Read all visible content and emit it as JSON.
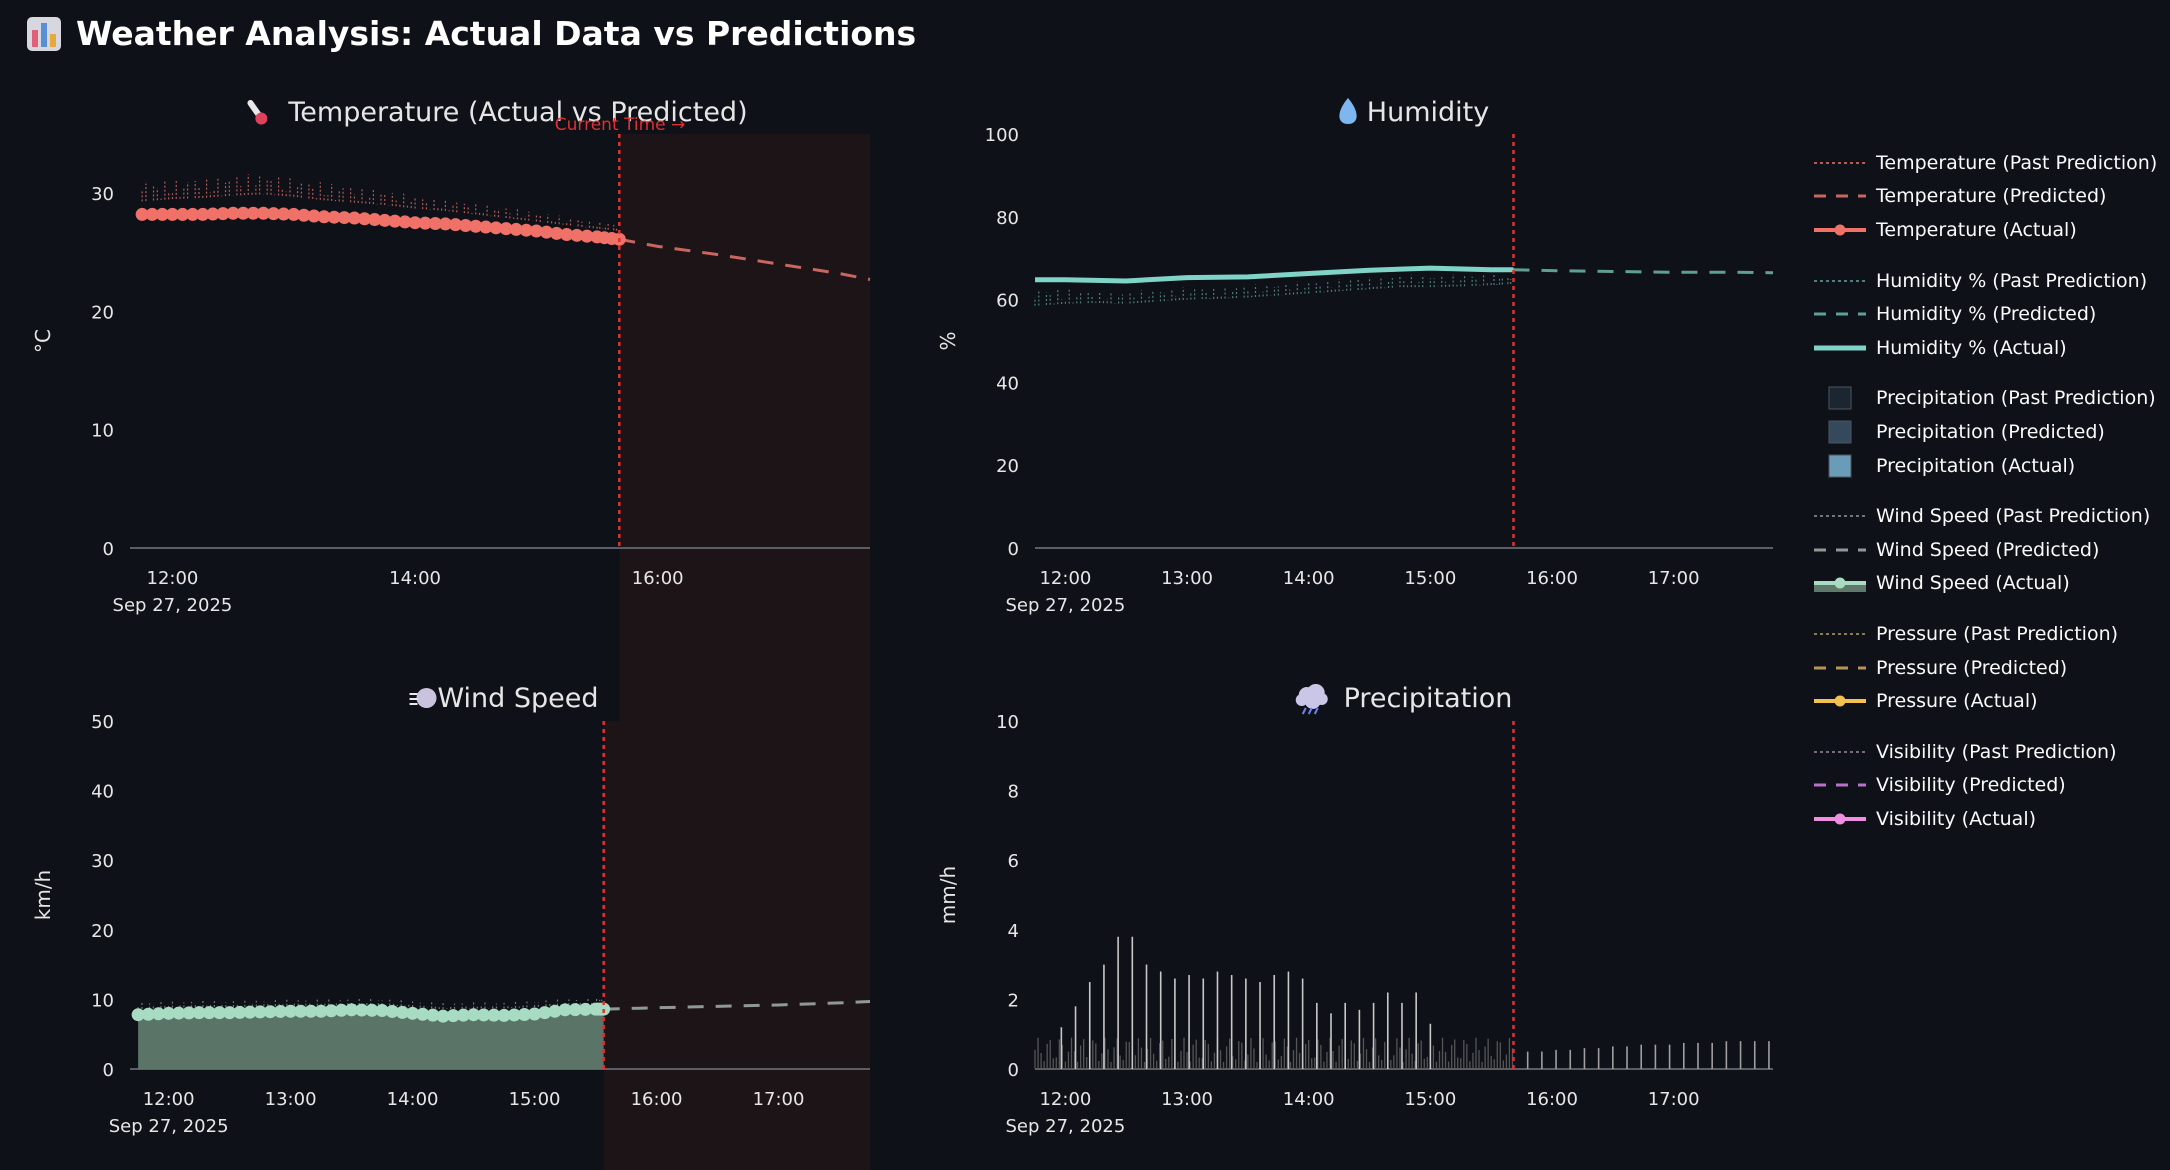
{
  "page": {
    "title": "Weather Analysis: Actual Data vs Predictions",
    "title_icon": "bar-chart-icon",
    "background": "#0e1117"
  },
  "colors": {
    "temperature": "#f07167",
    "temperature_pred": "#c9665f",
    "humidity": "#7fd3c7",
    "humidity_pred": "#5f9f94",
    "precip_past": "#1c2630",
    "precip_pred": "#34495c",
    "precip_actual": "#6a9cb8",
    "wind": "#a8dcc2",
    "wind_fill": "#5f7a6b",
    "wind_pred": "#8f9a94",
    "pressure": "#f2c14e",
    "pressure_pred": "#b8945a",
    "visibility": "#f08fe0",
    "visibility_pred": "#b873c9",
    "current_time_line": "#e03030",
    "future_shade": "#1d1417",
    "axis": "#5a5f66"
  },
  "current_time_label": "Current Time →",
  "legend": [
    [
      {
        "label": "Temperature (Past Prediction)",
        "style": "dotted",
        "color": "#b55a55"
      },
      {
        "label": "Temperature (Predicted)",
        "style": "dashed",
        "color": "#c9665f"
      },
      {
        "label": "Temperature (Actual)",
        "style": "solid-marker",
        "color": "#f07167"
      }
    ],
    [
      {
        "label": "Humidity % (Past Prediction)",
        "style": "dotted",
        "color": "#4f7f78"
      },
      {
        "label": "Humidity % (Predicted)",
        "style": "dashed",
        "color": "#5f9f94"
      },
      {
        "label": "Humidity % (Actual)",
        "style": "solid",
        "color": "#7fd3c7"
      }
    ],
    [
      {
        "label": "Precipitation (Past Prediction)",
        "style": "square",
        "color": "#1c2630"
      },
      {
        "label": "Precipitation (Predicted)",
        "style": "square",
        "color": "#34495c"
      },
      {
        "label": "Precipitation (Actual)",
        "style": "square",
        "color": "#6a9cb8"
      }
    ],
    [
      {
        "label": "Wind Speed (Past Prediction)",
        "style": "dotted",
        "color": "#6f7a74"
      },
      {
        "label": "Wind Speed (Predicted)",
        "style": "dashed",
        "color": "#8f9a94"
      },
      {
        "label": "Wind Speed (Actual)",
        "style": "fill-marker",
        "color": "#a8dcc2"
      }
    ],
    [
      {
        "label": "Pressure (Past Prediction)",
        "style": "dotted",
        "color": "#8a7a55"
      },
      {
        "label": "Pressure (Predicted)",
        "style": "dashed",
        "color": "#b8945a"
      },
      {
        "label": "Pressure (Actual)",
        "style": "solid-marker",
        "color": "#f2c14e"
      }
    ],
    [
      {
        "label": "Visibility (Past Prediction)",
        "style": "dotted",
        "color": "#7a6a80"
      },
      {
        "label": "Visibility (Predicted)",
        "style": "dashed",
        "color": "#b873c9"
      },
      {
        "label": "Visibility (Actual)",
        "style": "solid-marker",
        "color": "#f08fe0"
      }
    ]
  ],
  "chart_data": [
    {
      "id": "temperature",
      "type": "line",
      "title": "Temperature (Actual vs Predicted)",
      "title_icon": "thermometer-icon",
      "xlabel": "",
      "ylabel": "°C",
      "xlim": [
        "11:39",
        "17:45"
      ],
      "ylim": [
        0,
        35
      ],
      "yticks": [
        0,
        10,
        20,
        30
      ],
      "xticks": [
        "12:00",
        "14:00",
        "16:00"
      ],
      "date_label": "Sep 27, 2025",
      "current_time": "15:41",
      "future_shaded": true,
      "series": [
        {
          "name": "Temperature (Actual)",
          "role": "actual",
          "style": "solid-marker",
          "color": "#f07167",
          "x": [
            "11:45",
            "12:00",
            "12:15",
            "12:30",
            "12:45",
            "13:00",
            "13:15",
            "13:30",
            "13:45",
            "14:00",
            "14:15",
            "14:30",
            "14:45",
            "15:00",
            "15:15",
            "15:30",
            "15:41"
          ],
          "y": [
            28.2,
            28.2,
            28.2,
            28.3,
            28.3,
            28.2,
            28.0,
            27.9,
            27.7,
            27.5,
            27.4,
            27.2,
            27.0,
            26.8,
            26.5,
            26.3,
            26.1
          ]
        },
        {
          "name": "Temperature (Predicted)",
          "role": "predicted",
          "style": "dashed",
          "color": "#c9665f",
          "x": [
            "15:41",
            "16:00",
            "16:30",
            "17:00",
            "17:30",
            "17:45"
          ],
          "y": [
            26.1,
            25.5,
            24.8,
            24.0,
            23.2,
            22.7
          ]
        },
        {
          "name": "Temperature (Past Prediction)",
          "role": "past",
          "style": "dotted",
          "color": "#b55a55",
          "x": [
            "11:45",
            "12:00",
            "12:15",
            "12:30",
            "12:45",
            "13:00",
            "13:15",
            "13:30",
            "13:45",
            "14:00",
            "14:15",
            "14:30",
            "14:45",
            "15:00",
            "15:15",
            "15:30",
            "15:41"
          ],
          "y_min": [
            29.3,
            29.5,
            29.6,
            29.8,
            29.9,
            29.7,
            29.4,
            29.2,
            29.0,
            28.7,
            28.5,
            28.2,
            27.9,
            27.6,
            27.3,
            27.0,
            26.8
          ],
          "y_max": [
            31.0,
            31.2,
            31.3,
            31.5,
            31.7,
            31.3,
            30.9,
            30.6,
            30.2,
            29.8,
            29.5,
            29.1,
            28.8,
            28.4,
            28.0,
            27.7,
            27.3
          ]
        }
      ]
    },
    {
      "id": "humidity",
      "type": "line",
      "title": "Humidity",
      "title_icon": "droplet-icon",
      "xlabel": "",
      "ylabel": "%",
      "xlim": [
        "11:45",
        "17:49"
      ],
      "ylim": [
        0,
        100
      ],
      "yticks": [
        0,
        20,
        40,
        60,
        80,
        100
      ],
      "xticks": [
        "12:00",
        "13:00",
        "14:00",
        "15:00",
        "16:00",
        "17:00"
      ],
      "date_label": "Sep 27, 2025",
      "current_time": "15:41",
      "future_shaded": false,
      "series": [
        {
          "name": "Humidity % (Actual)",
          "role": "actual",
          "style": "solid",
          "color": "#7fd3c7",
          "x": [
            "11:45",
            "12:00",
            "12:30",
            "13:00",
            "13:30",
            "14:00",
            "14:30",
            "15:00",
            "15:30",
            "15:41"
          ],
          "y": [
            64.8,
            64.8,
            64.5,
            65.3,
            65.5,
            66.3,
            67.1,
            67.6,
            67.2,
            67.2
          ]
        },
        {
          "name": "Humidity % (Predicted)",
          "role": "predicted",
          "style": "dashed",
          "color": "#5f9f94",
          "x": [
            "15:41",
            "16:00",
            "16:30",
            "17:00",
            "17:30",
            "17:49"
          ],
          "y": [
            67.2,
            67.0,
            66.8,
            66.6,
            66.6,
            66.5
          ]
        },
        {
          "name": "Humidity % (Past Prediction)",
          "role": "past",
          "style": "dotted",
          "color": "#4f7f78",
          "x": [
            "11:45",
            "12:00",
            "12:15",
            "12:30",
            "12:45",
            "13:00",
            "13:15",
            "13:30",
            "13:45",
            "14:00",
            "14:15",
            "14:30",
            "14:45",
            "15:00",
            "15:15",
            "15:30",
            "15:41"
          ],
          "y_min": [
            58.5,
            59.0,
            59.2,
            59.0,
            59.5,
            60.0,
            60.2,
            60.5,
            61.0,
            61.5,
            62.0,
            62.5,
            63.0,
            63.0,
            63.2,
            63.5,
            63.8
          ],
          "y_max": [
            62.5,
            62.5,
            62.0,
            62.0,
            62.5,
            63.0,
            63.0,
            63.5,
            64.0,
            64.5,
            65.0,
            65.5,
            66.0,
            66.0,
            66.2,
            66.0,
            66.0
          ]
        }
      ]
    },
    {
      "id": "wind",
      "type": "area",
      "title": "Wind Speed",
      "title_icon": "wind-face-icon",
      "xlabel": "",
      "ylabel": "km/h",
      "xlim": [
        "11:41",
        "17:45"
      ],
      "ylim": [
        0,
        50
      ],
      "yticks": [
        0,
        10,
        20,
        30,
        40,
        50
      ],
      "xticks": [
        "12:00",
        "13:00",
        "14:00",
        "15:00",
        "16:00",
        "17:00"
      ],
      "date_label": "Sep 27, 2025",
      "current_time": "15:34",
      "future_shaded": true,
      "series": [
        {
          "name": "Wind Speed (Actual)",
          "role": "actual",
          "style": "fill-marker",
          "color": "#a8dcc2",
          "fill": "#5f7a6b",
          "x": [
            "11:45",
            "12:00",
            "12:15",
            "12:30",
            "12:45",
            "13:00",
            "13:15",
            "13:30",
            "13:45",
            "14:00",
            "14:15",
            "14:30",
            "14:45",
            "15:00",
            "15:15",
            "15:30",
            "15:34"
          ],
          "y": [
            7.8,
            8.0,
            8.1,
            8.1,
            8.2,
            8.3,
            8.3,
            8.5,
            8.4,
            8.0,
            7.6,
            7.8,
            7.7,
            7.9,
            8.5,
            8.6,
            8.6
          ]
        },
        {
          "name": "Wind Speed (Predicted)",
          "role": "predicted",
          "style": "dashed",
          "color": "#8f9a94",
          "x": [
            "15:34",
            "16:00",
            "16:30",
            "17:00",
            "17:30",
            "17:45"
          ],
          "y": [
            8.6,
            8.8,
            9.0,
            9.2,
            9.5,
            9.7
          ]
        },
        {
          "name": "Wind Speed (Past Prediction)",
          "role": "past",
          "style": "dotted",
          "color": "#6f7a74",
          "x": [
            "11:45",
            "12:00",
            "12:15",
            "12:30",
            "12:45",
            "13:00",
            "13:15",
            "13:30",
            "13:45",
            "14:00",
            "14:15",
            "14:30",
            "14:45",
            "15:00",
            "15:15",
            "15:30",
            "15:34"
          ],
          "y_min": [
            8.6,
            8.8,
            8.9,
            8.9,
            9.0,
            9.1,
            9.1,
            9.2,
            9.2,
            8.9,
            8.6,
            8.7,
            8.7,
            8.9,
            9.2,
            9.2,
            9.2
          ],
          "y_max": [
            9.6,
            9.7,
            9.8,
            9.8,
            9.9,
            10.0,
            10.0,
            10.1,
            10.1,
            9.8,
            9.5,
            9.6,
            9.6,
            9.8,
            10.1,
            10.1,
            10.1
          ]
        }
      ]
    },
    {
      "id": "precipitation",
      "type": "bar",
      "title": "Precipitation",
      "title_icon": "rain-cloud-icon",
      "xlabel": "",
      "ylabel": "mm/h",
      "xlim": [
        "11:45",
        "17:49"
      ],
      "ylim": [
        0,
        10
      ],
      "yticks": [
        0,
        2,
        4,
        6,
        8,
        10
      ],
      "xticks": [
        "12:00",
        "13:00",
        "14:00",
        "15:00",
        "16:00",
        "17:00"
      ],
      "date_label": "Sep 27, 2025",
      "current_time": "15:41",
      "future_shaded": false,
      "series": [
        {
          "name": "Precipitation (Actual)",
          "role": "actual",
          "color": "#c8c8c8",
          "x": [
            "11:58",
            "12:05",
            "12:12",
            "12:19",
            "12:26",
            "12:33",
            "12:40",
            "12:47",
            "12:54",
            "13:01",
            "13:08",
            "13:15",
            "13:22",
            "13:29",
            "13:36",
            "13:43",
            "13:50",
            "13:57",
            "14:04",
            "14:11",
            "14:18",
            "14:25",
            "14:32",
            "14:39",
            "14:46",
            "14:53",
            "15:00"
          ],
          "y": [
            1.2,
            1.8,
            2.5,
            3.0,
            3.8,
            3.8,
            3.0,
            2.8,
            2.6,
            2.7,
            2.6,
            2.8,
            2.7,
            2.6,
            2.5,
            2.7,
            2.8,
            2.6,
            1.9,
            1.6,
            1.9,
            1.7,
            1.9,
            2.2,
            1.9,
            2.2,
            1.3
          ]
        },
        {
          "name": "Precipitation (Predicted)",
          "role": "predicted",
          "color": "#a0a0a0",
          "x": [
            "15:48",
            "15:55",
            "16:02",
            "16:09",
            "16:16",
            "16:23",
            "16:30",
            "16:37",
            "16:44",
            "16:51",
            "16:58",
            "17:05",
            "17:12",
            "17:19",
            "17:26",
            "17:33",
            "17:40",
            "17:47"
          ],
          "y": [
            0.5,
            0.5,
            0.55,
            0.55,
            0.6,
            0.6,
            0.65,
            0.65,
            0.7,
            0.7,
            0.7,
            0.75,
            0.75,
            0.75,
            0.8,
            0.8,
            0.8,
            0.8
          ]
        },
        {
          "name": "Precipitation (Past Prediction)",
          "role": "past",
          "color": "#555555",
          "x_start": "11:45",
          "x_end": "15:41",
          "y_min": 0.2,
          "y_max": 0.9
        }
      ]
    }
  ]
}
